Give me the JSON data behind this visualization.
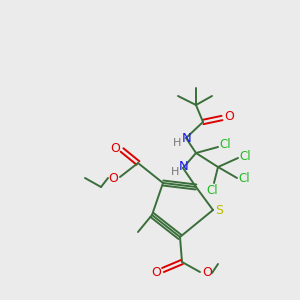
{
  "background_color": "#ebebeb",
  "atom_colors": {
    "C": "#3a6e3a",
    "N": "#1a1aee",
    "O": "#dd0000",
    "S": "#bbbb00",
    "Cl": "#22bb22",
    "H": "#777777"
  },
  "bond_color": "#3a6e3a",
  "figsize": [
    3.0,
    3.0
  ],
  "dpi": 100
}
